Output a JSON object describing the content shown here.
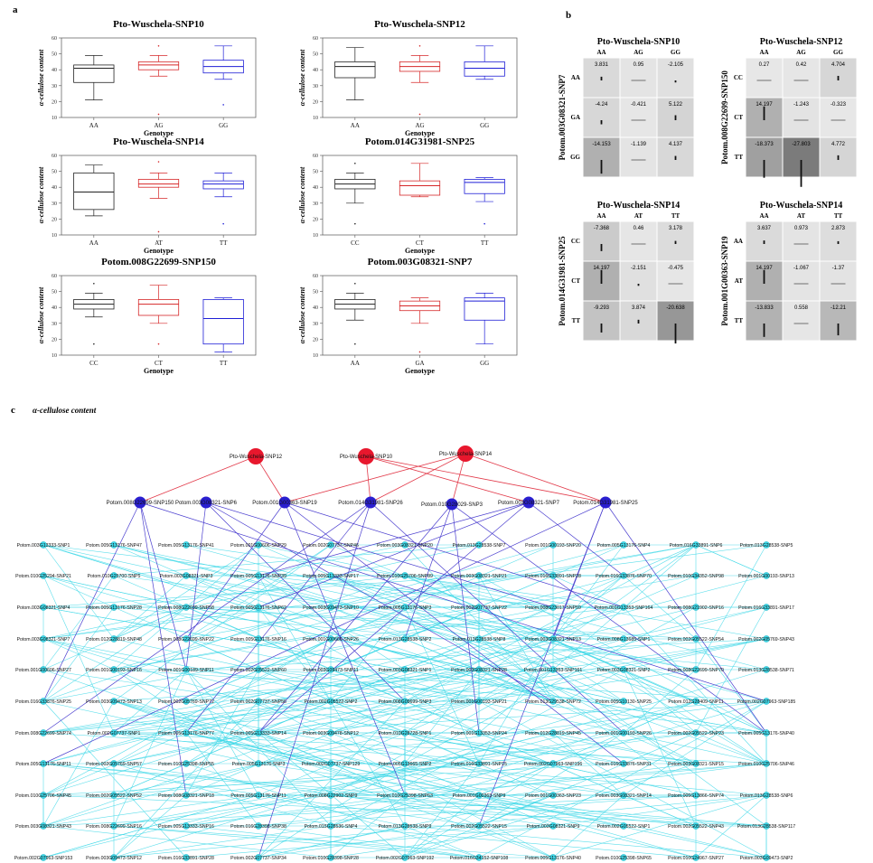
{
  "panel_a": {
    "letter": "a",
    "ylabel": "α-cellulose content",
    "xlabel": "Genotype"
  },
  "panel_b": {
    "letter": "b"
  },
  "panel_c": {
    "letter": "c",
    "title": "α-cellulose content"
  },
  "chart_data": [
    {
      "type": "box",
      "title": "Pto-Wuschela-SNP10",
      "categories": [
        "AA",
        "AG",
        "GG"
      ],
      "colors": [
        "#222222",
        "#d62728",
        "#1f1fd6"
      ],
      "ylim": [
        10,
        60
      ],
      "yticks": [
        10,
        20,
        30,
        40,
        50,
        60
      ],
      "boxes": [
        {
          "whisker_low": 21,
          "q1": 32,
          "median": 41,
          "q3": 43,
          "whisker_high": 49,
          "outliers": []
        },
        {
          "whisker_low": 36,
          "q1": 40,
          "median": 43,
          "q3": 45,
          "whisker_high": 49,
          "outliers": [
            12,
            55
          ]
        },
        {
          "whisker_low": 34,
          "q1": 38,
          "median": 42,
          "q3": 46,
          "whisker_high": 55,
          "outliers": [
            18
          ]
        }
      ]
    },
    {
      "type": "box",
      "title": "Pto-Wuschela-SNP12",
      "categories": [
        "AA",
        "AG",
        "GG"
      ],
      "colors": [
        "#222222",
        "#d62728",
        "#1f1fd6"
      ],
      "ylim": [
        10,
        60
      ],
      "yticks": [
        10,
        20,
        30,
        40,
        50,
        60
      ],
      "boxes": [
        {
          "whisker_low": 21,
          "q1": 35,
          "median": 42,
          "q3": 45,
          "whisker_high": 54,
          "outliers": []
        },
        {
          "whisker_low": 32,
          "q1": 39,
          "median": 42,
          "q3": 45,
          "whisker_high": 49,
          "outliers": [
            12,
            55
          ]
        },
        {
          "whisker_low": 34,
          "q1": 36,
          "median": 41,
          "q3": 45,
          "whisker_high": 55,
          "outliers": []
        }
      ]
    },
    {
      "type": "box",
      "title": "Pto-Wuschela-SNP14",
      "categories": [
        "AA",
        "AT",
        "TT"
      ],
      "colors": [
        "#222222",
        "#d62728",
        "#1f1fd6"
      ],
      "ylim": [
        10,
        60
      ],
      "yticks": [
        10,
        20,
        30,
        40,
        50,
        60
      ],
      "boxes": [
        {
          "whisker_low": 22,
          "q1": 26,
          "median": 37,
          "q3": 49,
          "whisker_high": 54,
          "outliers": []
        },
        {
          "whisker_low": 33,
          "q1": 40,
          "median": 42,
          "q3": 45,
          "whisker_high": 49,
          "outliers": [
            12,
            56
          ]
        },
        {
          "whisker_low": 34,
          "q1": 39,
          "median": 42,
          "q3": 44,
          "whisker_high": 49,
          "outliers": [
            17
          ]
        }
      ]
    },
    {
      "type": "box",
      "title": "Potom.014G31981-SNP25",
      "categories": [
        "CC",
        "CT",
        "TT"
      ],
      "colors": [
        "#222222",
        "#d62728",
        "#1f1fd6"
      ],
      "ylim": [
        10,
        60
      ],
      "yticks": [
        10,
        20,
        30,
        40,
        50,
        60
      ],
      "boxes": [
        {
          "whisker_low": 30,
          "q1": 39,
          "median": 42,
          "q3": 45,
          "whisker_high": 49,
          "outliers": [
            17,
            55
          ]
        },
        {
          "whisker_low": 34,
          "q1": 35,
          "median": 41,
          "q3": 44,
          "whisker_high": 55,
          "outliers": []
        },
        {
          "whisker_low": 31,
          "q1": 36,
          "median": 43,
          "q3": 45,
          "whisker_high": 46,
          "outliers": [
            17
          ]
        }
      ]
    },
    {
      "type": "box",
      "title": "Potom.008G22699-SNP150",
      "categories": [
        "CC",
        "CT",
        "TT"
      ],
      "colors": [
        "#222222",
        "#d62728",
        "#1f1fd6"
      ],
      "ylim": [
        10,
        60
      ],
      "yticks": [
        10,
        20,
        30,
        40,
        50,
        60
      ],
      "boxes": [
        {
          "whisker_low": 34,
          "q1": 39,
          "median": 42,
          "q3": 45,
          "whisker_high": 49,
          "outliers": [
            17,
            55
          ]
        },
        {
          "whisker_low": 30,
          "q1": 35,
          "median": 42,
          "q3": 45,
          "whisker_high": 54,
          "outliers": [
            17
          ]
        },
        {
          "whisker_low": 12,
          "q1": 17,
          "median": 33,
          "q3": 45,
          "whisker_high": 46,
          "outliers": []
        }
      ]
    },
    {
      "type": "box",
      "title": "Potom.003G08321-SNP7",
      "categories": [
        "AA",
        "GA",
        "GG"
      ],
      "colors": [
        "#222222",
        "#d62728",
        "#1f1fd6"
      ],
      "ylim": [
        10,
        60
      ],
      "yticks": [
        10,
        20,
        30,
        40,
        50,
        60
      ],
      "boxes": [
        {
          "whisker_low": 32,
          "q1": 39,
          "median": 42,
          "q3": 45,
          "whisker_high": 49,
          "outliers": [
            17,
            55
          ]
        },
        {
          "whisker_low": 30,
          "q1": 38,
          "median": 41,
          "q3": 44,
          "whisker_high": 46,
          "outliers": [
            12
          ]
        },
        {
          "whisker_low": 17,
          "q1": 32,
          "median": 44,
          "q3": 46,
          "whisker_high": 49,
          "outliers": []
        }
      ]
    },
    {
      "type": "heatmap",
      "title": "Pto-Wuschela-SNP10",
      "side_label": "Potom.003G08321-SNP7",
      "columns": [
        "AA",
        "AG",
        "GG"
      ],
      "rows": [
        "AA",
        "GA",
        "GG"
      ],
      "values": [
        [
          3.831,
          0.95,
          -2.105
        ],
        [
          -4.24,
          -0.421,
          5.122
        ],
        [
          -14.153,
          -1.139,
          4.137
        ]
      ]
    },
    {
      "type": "heatmap",
      "title": "Pto-Wuschela-SNP12",
      "side_label": "Potom.008G22699-SNP150",
      "columns": [
        "AA",
        "AG",
        "GG"
      ],
      "rows": [
        "CC",
        "CT",
        "TT"
      ],
      "values": [
        [
          0.27,
          0.42,
          4.704
        ],
        [
          14.197,
          -1.243,
          -0.323
        ],
        [
          -18.373,
          -27.803,
          4.772
        ]
      ]
    },
    {
      "type": "heatmap",
      "title": "Pto-Wuschela-SNP14",
      "side_label": "Potom.014G31981-SNP25",
      "columns": [
        "AA",
        "AT",
        "TT"
      ],
      "rows": [
        "CC",
        "CT",
        "TT"
      ],
      "values": [
        [
          -7.368,
          0.46,
          3.178
        ],
        [
          14.197,
          -2.151,
          -0.475
        ],
        [
          -9.293,
          3.874,
          -20.638
        ]
      ]
    },
    {
      "type": "heatmap",
      "title": "Pto-Wuschela-SNP14",
      "side_label": "Potom.001G00363-SNP19",
      "columns": [
        "AA",
        "AT",
        "TT"
      ],
      "rows": [
        "AA",
        "AT",
        "TT"
      ],
      "values": [
        [
          3.637,
          0.973,
          2.873
        ],
        [
          14.197,
          -1.067,
          -1.37
        ],
        [
          -13.833,
          0.558,
          -12.21
        ]
      ]
    }
  ],
  "network": {
    "top_nodes": [
      "Pto-Wuschela-SNP12",
      "Pto-Wuschela-SNP10",
      "Pto-Wuschela-SNP14"
    ],
    "mid_nodes": [
      "Potom.008G22699-SNP150",
      "Potom.003G08321-SNP6",
      "Potom.001G00363-SNP19",
      "Potom.014G31981-SNP26",
      "Potom.010G28029-SNP3",
      "Potom.003G08321-SNP7",
      "Potom.014G31981-SNP25"
    ],
    "rows": [
      [
        "Potom.003G13333-SNP1",
        "Potom.005G13176-SNP47",
        "Potom.005G13176-SNP41",
        "Potom.001G00606-SNP29",
        "Potom.002G07737-SNP46",
        "Potom.003G08321-SNP20",
        "Potom.013G28538-SNP7",
        "Potom.001G00193-SNP20",
        "Potom.005G13176-SNP4",
        "Potom.016G33891-SNP6",
        "Potom.013G28538-SNP5"
      ],
      [
        "Potom.010G25294-SNP21",
        "Potom.010G25700-SNP5",
        "Potom.003G08321-SNP3",
        "Potom.005G13176-SNP39",
        "Potom.005G13333-SNP17",
        "Potom.010G25706-SNP89",
        "Potom.003G08321-SNP21",
        "Potom.016G33891-SNP28",
        "Potom.016G33876-SNP70",
        "Potom.010G34352-SNP98",
        "Potom.001G00193-SNP13"
      ],
      [
        "Potom.003G08321-SNP4",
        "Potom.005G13176-SNP28",
        "Potom.008G22699-SNP58",
        "Potom.005G13176-SNP62",
        "Potom.003G09473-SNP10",
        "Potom.005G13176-SNP3",
        "Potom.002G07737-SNP22",
        "Potom.008G23017-SNP59",
        "Potom.001G13353-SNP164",
        "Potom.008G21902-SNP16",
        "Potom.016G33891-SNP17"
      ],
      [
        "Potom.003G08321-SNP7",
        "Potom.012G28819-SNP48",
        "Potom.008G22699-SNP22",
        "Potom.005G13176-SNP16",
        "Potom.001G00606-SNP26",
        "Potom.013G28538-SNP2",
        "Potom.013G28538-SNP8",
        "Potom.003G08321-SNP13",
        "Potom.008G13685-SNP1",
        "Potom.002G05522-SNP54",
        "Potom.002G05769-SNP43"
      ],
      [
        "Potom.001G00606-SNP27",
        "Potom.001G00193-SNP16",
        "Potom.001G00189-SNP11",
        "Potom.002G05522-SNP60",
        "Potom.003G09473-SNP11",
        "Potom.003G08321-SNP1",
        "Potom.003G08321-SNP28",
        "Potom.001G13353-SNP161",
        "Potom.003G08321-SNP2",
        "Potom.008G22699-SNP70",
        "Potom.013G28538-SNP71"
      ],
      [
        "Potom.016G33876-SNP25",
        "Potom.003G09473-SNP13",
        "Potom.002G05769-SNP72",
        "Potom.002G07737-SNP56",
        "Potom.002G05522-SNP2",
        "Potom.008G09699-SNP3",
        "Potom.001G00193-SNP21",
        "Potom.013G29538-SNP72",
        "Potom.005G10130-SNP25",
        "Potom.012G28409-SNP11",
        "Potom.002G07963-SNP185"
      ],
      [
        "Potom.008G22699-SNP74",
        "Potom.002G07737-SNP1",
        "Potom.005G13176-SNP77",
        "Potom.005G13333-SNP14",
        "Potom.003G09478-SNP12",
        "Potom.010G28728-SNP1",
        "Potom.001G13353-SNP24",
        "Potom.012G28819-SNP45",
        "Potom.001G00193-SNP26",
        "Potom.002G05522-SNP23",
        "Potom.005G13176-SNP40"
      ],
      [
        "Potom.005G13176-SNP11",
        "Potom.002G05769-SNP57",
        "Potom.010G25398-SNP55",
        "Potom.005G13176-SNP3",
        "Potom.002G07737-SNP129",
        "Potom.005G13665-SNP2",
        "Potom.016G33891-SNP15",
        "Potom.002G07963-SNP196",
        "Potom.016G33876-SNP31",
        "Potom.003G08321-SNP15",
        "Potom.010G25706-SNP46"
      ],
      [
        "Potom.010G25706-SNP45",
        "Potom.002G05522-SNP52",
        "Potom.008G08321-SNP18",
        "Potom.005G13176-SNP11",
        "Potom.008G22902-SNP9",
        "Potom.010G25398-SNP63",
        "Potom.001G00363-SNP9",
        "Potom.001G00363-SNP23",
        "Potom.003G08321-SNP14",
        "Potom.005G13866-SNP74",
        "Potom.013G28538-SNP6"
      ],
      [
        "Potom.003G08321-SNP43",
        "Potom.008G22699-SNP16",
        "Potom.005G13333-SNP16",
        "Potom.016G28398-SNP38",
        "Potom.015G28536-SNP4",
        "Potom.013G28538-SNP9",
        "Potom.002G05522-SNP15",
        "Potom.003G08321-SNP9",
        "Potom.002G05522-SNP1",
        "Potom.002G05522-SNP43",
        "Potom.013G28538-SNP117"
      ],
      [
        "Potom.002G07963-SNP153",
        "Potom.003G09473-SNP12",
        "Potom.016G33891-SNP28",
        "Potom.002G07737-SNP34",
        "Potom.010G28398-SNP28",
        "Potom.002G07963-SNP192",
        "Potom.016G34152-SNP108",
        "Potom.005G13176-SNP40",
        "Potom.010G25398-SNP65",
        "Potom.010G24967-SNP27",
        "Potom.003G09473-SNP2"
      ]
    ]
  }
}
